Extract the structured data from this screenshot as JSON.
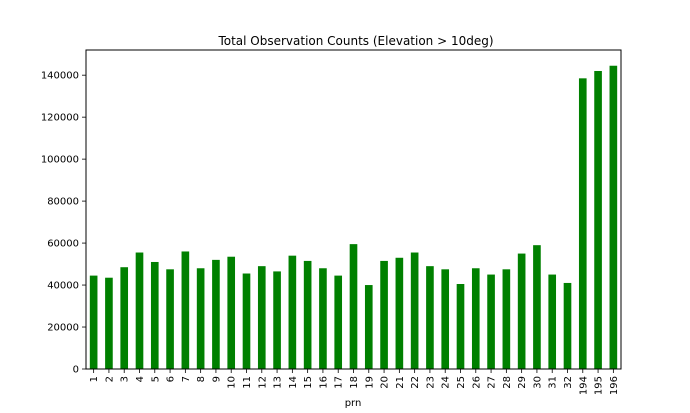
{
  "chart_data": {
    "type": "bar",
    "title": "Total Observation Counts (Elevation > 10deg)",
    "xlabel": "prn",
    "ylabel": "",
    "bar_color": "#008000",
    "ylim": [
      0,
      152000
    ],
    "yticks": [
      0,
      20000,
      40000,
      60000,
      80000,
      100000,
      120000,
      140000
    ],
    "ytick_labels": [
      "0",
      "20000",
      "40000",
      "60000",
      "80000",
      "100000",
      "120000",
      "140000"
    ],
    "categories": [
      "1",
      "2",
      "3",
      "4",
      "5",
      "6",
      "7",
      "8",
      "9",
      "10",
      "11",
      "12",
      "13",
      "14",
      "15",
      "16",
      "17",
      "18",
      "19",
      "20",
      "21",
      "22",
      "23",
      "24",
      "25",
      "26",
      "27",
      "28",
      "29",
      "30",
      "31",
      "32",
      "194",
      "195",
      "196"
    ],
    "values": [
      44500,
      43500,
      48500,
      55500,
      51000,
      47500,
      56000,
      48000,
      52000,
      53500,
      45500,
      49000,
      46500,
      54000,
      51500,
      48000,
      44500,
      59500,
      40000,
      51500,
      53000,
      55500,
      49000,
      47500,
      40500,
      48000,
      45000,
      47500,
      55000,
      59000,
      45000,
      41000,
      138500,
      142000,
      144500
    ],
    "grid": false,
    "legend": "none"
  }
}
